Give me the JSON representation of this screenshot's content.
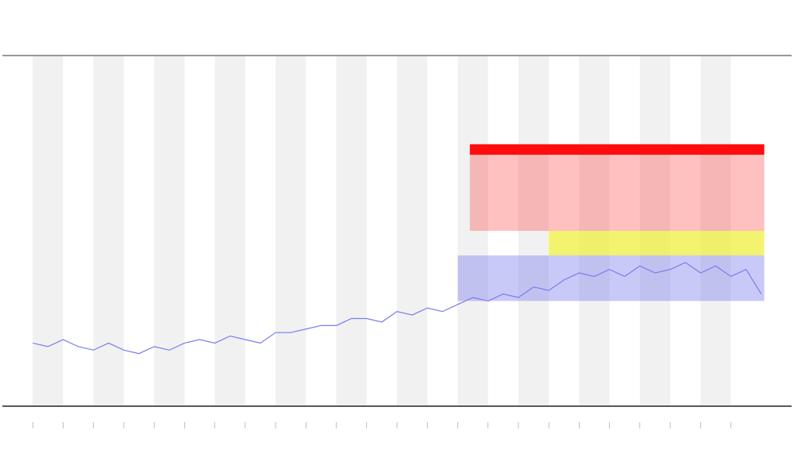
{
  "chart_data": {
    "type": "line",
    "x": [
      0,
      0.5,
      1,
      1.5,
      2,
      2.5,
      3,
      3.5,
      4,
      4.5,
      5,
      5.5,
      6,
      6.5,
      7,
      7.5,
      8,
      8.5,
      9,
      9.5,
      10,
      10.5,
      11,
      11.5,
      12,
      12.5,
      13,
      13.5,
      14,
      14.5,
      15,
      15.5,
      16,
      16.5,
      17,
      17.5,
      18,
      18.5,
      19,
      19.5,
      20,
      20.5,
      21,
      21.5,
      22,
      22.5,
      23,
      23.5,
      24
    ],
    "series": [
      {
        "color": "#7b7bf0",
        "values": [
          18,
          17,
          19,
          17,
          16,
          18,
          16,
          15,
          17,
          16,
          18,
          19,
          18,
          20,
          19,
          18,
          21,
          21,
          22,
          23,
          23,
          25,
          25,
          24,
          27,
          26,
          28,
          27,
          29,
          31,
          30,
          32,
          31,
          34,
          33,
          36,
          38,
          37,
          39,
          37,
          40,
          38,
          39,
          41,
          38,
          40,
          37,
          39,
          32
        ]
      }
    ],
    "zones": [
      {
        "color": "#ff0000",
        "opacity": 0.95,
        "x": [
          14.4,
          24.1
        ],
        "y": [
          71.7,
          74.7
        ]
      },
      {
        "color": "#ff3030",
        "opacity": 0.3,
        "x": [
          14.4,
          24.1
        ],
        "y": [
          50,
          71.7
        ]
      },
      {
        "color": "#eeee33",
        "opacity": 0.7,
        "x": [
          17,
          24.1
        ],
        "y": [
          43,
          50
        ]
      },
      {
        "color": "#8888ee",
        "opacity": 0.45,
        "x": [
          14,
          24.1
        ],
        "y": [
          30,
          43
        ]
      }
    ],
    "xlim": [
      -1,
      25
    ],
    "xticks": [
      0,
      1,
      2,
      3,
      4,
      5,
      6,
      7,
      8,
      9,
      10,
      11,
      12,
      13,
      14,
      15,
      16,
      17,
      18,
      19,
      20,
      21,
      22,
      23
    ],
    "ylim": [
      0,
      100
    ],
    "shaded_intervals": true
  }
}
